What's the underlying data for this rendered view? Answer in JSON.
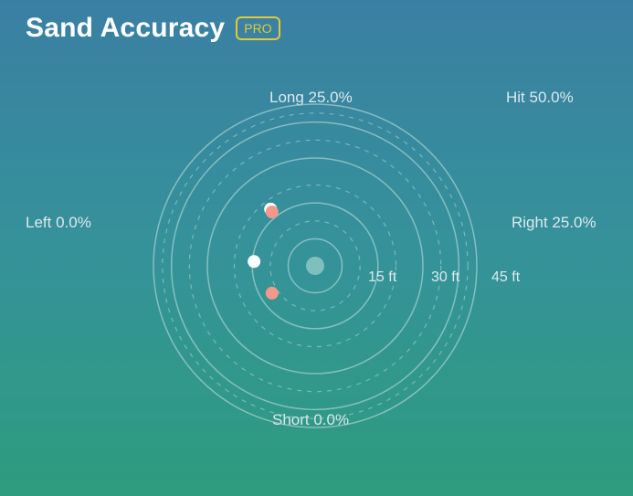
{
  "header": {
    "title": "Sand Accuracy",
    "badge": "PRO"
  },
  "stats": {
    "long": "Long 25.0%",
    "hit": "Hit 50.0%",
    "left": "Left 0.0%",
    "right": "Right 25.0%",
    "short": "Short 0.0%"
  },
  "rings": {
    "labels": [
      "15 ft",
      "30 ft",
      "45 ft"
    ]
  },
  "chart_data": {
    "type": "scatter",
    "unit": "ft",
    "ring_distances": [
      15,
      30,
      45
    ],
    "points": [
      {
        "x": -12.4,
        "y": 15.8,
        "result": "hit"
      },
      {
        "x": -17.0,
        "y": 1.2,
        "result": "hit"
      },
      {
        "x": -12.0,
        "y": -7.6,
        "result": "miss"
      },
      {
        "x": -12.0,
        "y": 15.0,
        "result": "miss"
      }
    ]
  },
  "colors": {
    "hit": "#ffffff",
    "miss": "#f4998a",
    "ring": "#a9d1d2",
    "center": "#7fc0bc",
    "badge": "#e3c93a"
  }
}
